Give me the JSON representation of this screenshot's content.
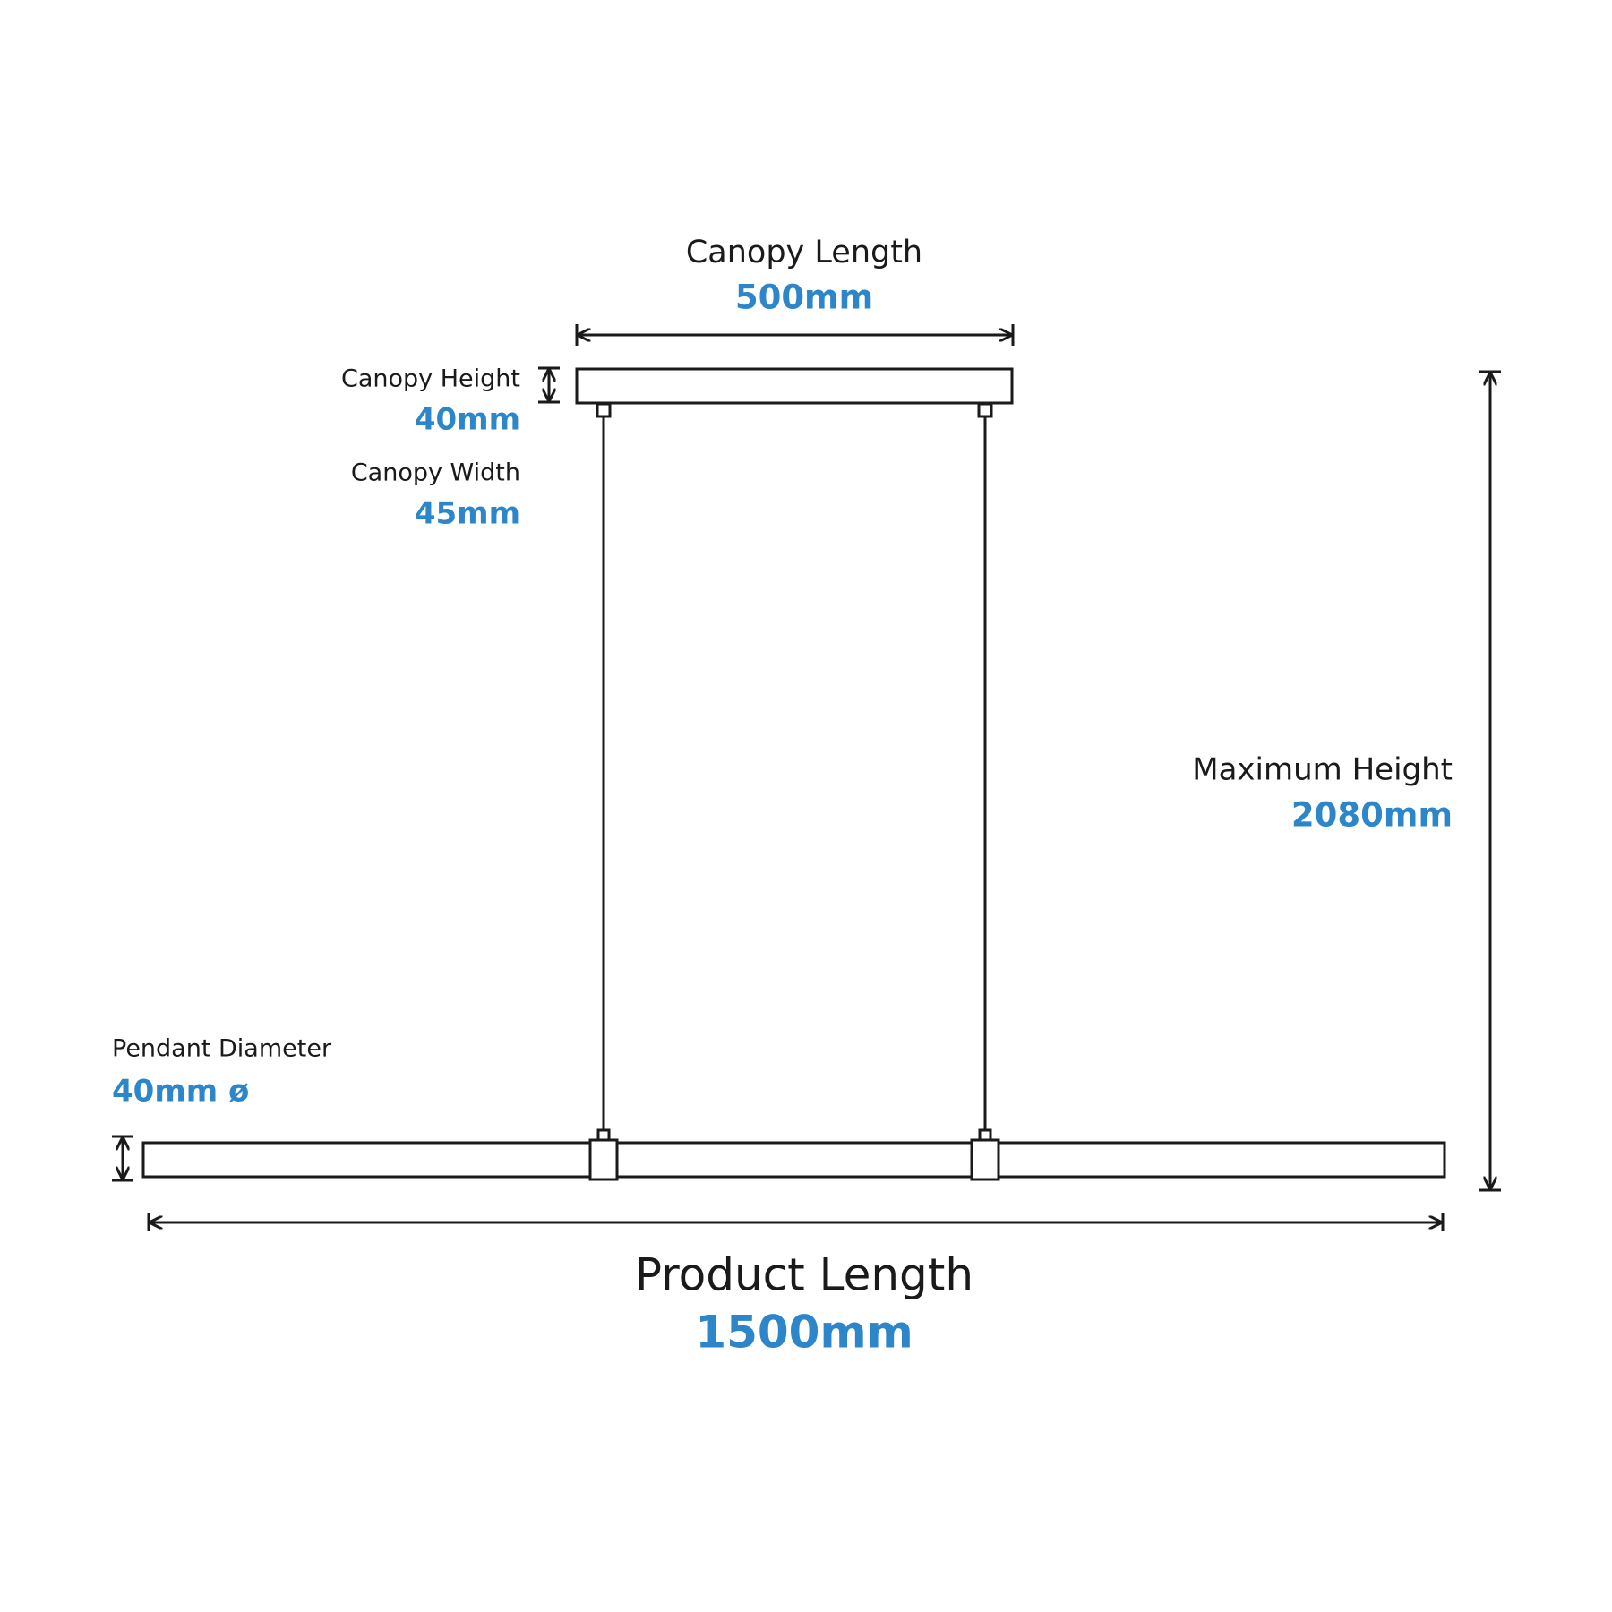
{
  "dimensions": {
    "canopy_length": {
      "label": "Canopy Length",
      "value": "500mm"
    },
    "canopy_height": {
      "label": "Canopy Height",
      "value": "40mm"
    },
    "canopy_width": {
      "label": "Canopy Width",
      "value": "45mm"
    },
    "maximum_height": {
      "label": "Maximum Height",
      "value": "2080mm"
    },
    "pendant_diameter": {
      "label": "Pendant Diameter",
      "value": "40mm ø"
    },
    "product_length": {
      "label": "Product Length",
      "value": "1500mm"
    }
  }
}
